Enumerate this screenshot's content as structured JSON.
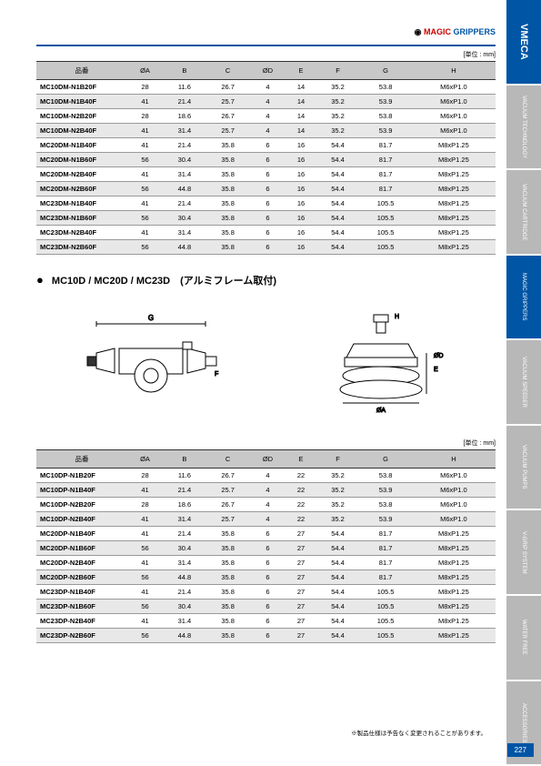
{
  "brand": {
    "magic": "MAGIC",
    "grippers": "GRIPPERS"
  },
  "unit": "[単位 : mm]",
  "headers": [
    "品番",
    "ØA",
    "B",
    "C",
    "ØD",
    "E",
    "F",
    "G",
    "H"
  ],
  "table1": [
    {
      "pn": "MC10DM-N1B20F",
      "d": [
        "28",
        "11.6",
        "26.7",
        "4",
        "14",
        "35.2",
        "53.8",
        "M6xP1.0"
      ],
      "alt": false
    },
    {
      "pn": "MC10DM-N1B40F",
      "d": [
        "41",
        "21.4",
        "25.7",
        "4",
        "14",
        "35.2",
        "53.9",
        "M6xP1.0"
      ],
      "alt": true
    },
    {
      "pn": "MC10DM-N2B20F",
      "d": [
        "28",
        "18.6",
        "26.7",
        "4",
        "14",
        "35.2",
        "53.8",
        "M6xP1.0"
      ],
      "alt": false
    },
    {
      "pn": "MC10DM-N2B40F",
      "d": [
        "41",
        "31.4",
        "25.7",
        "4",
        "14",
        "35.2",
        "53.9",
        "M6xP1.0"
      ],
      "alt": true
    },
    {
      "pn": "MC20DM-N1B40F",
      "d": [
        "41",
        "21.4",
        "35.8",
        "6",
        "16",
        "54.4",
        "81.7",
        "M8xP1.25"
      ],
      "alt": false
    },
    {
      "pn": "MC20DM-N1B60F",
      "d": [
        "56",
        "30.4",
        "35.8",
        "6",
        "16",
        "54.4",
        "81.7",
        "M8xP1.25"
      ],
      "alt": true
    },
    {
      "pn": "MC20DM-N2B40F",
      "d": [
        "41",
        "31.4",
        "35.8",
        "6",
        "16",
        "54.4",
        "81.7",
        "M8xP1.25"
      ],
      "alt": false
    },
    {
      "pn": "MC20DM-N2B60F",
      "d": [
        "56",
        "44.8",
        "35.8",
        "6",
        "16",
        "54.4",
        "81.7",
        "M8xP1.25"
      ],
      "alt": true
    },
    {
      "pn": "MC23DM-N1B40F",
      "d": [
        "41",
        "21.4",
        "35.8",
        "6",
        "16",
        "54.4",
        "105.5",
        "M8xP1.25"
      ],
      "alt": false
    },
    {
      "pn": "MC23DM-N1B60F",
      "d": [
        "56",
        "30.4",
        "35.8",
        "6",
        "16",
        "54.4",
        "105.5",
        "M8xP1.25"
      ],
      "alt": true
    },
    {
      "pn": "MC23DM-N2B40F",
      "d": [
        "41",
        "31.4",
        "35.8",
        "6",
        "16",
        "54.4",
        "105.5",
        "M8xP1.25"
      ],
      "alt": false
    },
    {
      "pn": "MC23DM-N2B60F",
      "d": [
        "56",
        "44.8",
        "35.8",
        "6",
        "16",
        "54.4",
        "105.5",
        "M8xP1.25"
      ],
      "alt": true
    }
  ],
  "section_title": "MC10D / MC20D / MC23D　(アルミフレーム取付)",
  "table2": [
    {
      "pn": "MC10DP-N1B20F",
      "d": [
        "28",
        "11.6",
        "26.7",
        "4",
        "22",
        "35.2",
        "53.8",
        "M6xP1.0"
      ],
      "alt": false
    },
    {
      "pn": "MC10DP-N1B40F",
      "d": [
        "41",
        "21.4",
        "25.7",
        "4",
        "22",
        "35.2",
        "53.9",
        "M6xP1.0"
      ],
      "alt": true
    },
    {
      "pn": "MC10DP-N2B20F",
      "d": [
        "28",
        "18.6",
        "26.7",
        "4",
        "22",
        "35.2",
        "53.8",
        "M6xP1.0"
      ],
      "alt": false
    },
    {
      "pn": "MC10DP-N2B40F",
      "d": [
        "41",
        "31.4",
        "25.7",
        "4",
        "22",
        "35.2",
        "53.9",
        "M6xP1.0"
      ],
      "alt": true
    },
    {
      "pn": "MC20DP-N1B40F",
      "d": [
        "41",
        "21.4",
        "35.8",
        "6",
        "27",
        "54.4",
        "81.7",
        "M8xP1.25"
      ],
      "alt": false
    },
    {
      "pn": "MC20DP-N1B60F",
      "d": [
        "56",
        "30.4",
        "35.8",
        "6",
        "27",
        "54.4",
        "81.7",
        "M8xP1.25"
      ],
      "alt": true
    },
    {
      "pn": "MC20DP-N2B40F",
      "d": [
        "41",
        "31.4",
        "35.8",
        "6",
        "27",
        "54.4",
        "81.7",
        "M8xP1.25"
      ],
      "alt": false
    },
    {
      "pn": "MC20DP-N2B60F",
      "d": [
        "56",
        "44.8",
        "35.8",
        "6",
        "27",
        "54.4",
        "81.7",
        "M8xP1.25"
      ],
      "alt": true
    },
    {
      "pn": "MC23DP-N1B40F",
      "d": [
        "41",
        "21.4",
        "35.8",
        "6",
        "27",
        "54.4",
        "105.5",
        "M8xP1.25"
      ],
      "alt": false
    },
    {
      "pn": "MC23DP-N1B60F",
      "d": [
        "56",
        "30.4",
        "35.8",
        "6",
        "27",
        "54.4",
        "105.5",
        "M8xP1.25"
      ],
      "alt": true
    },
    {
      "pn": "MC23DP-N2B40F",
      "d": [
        "41",
        "31.4",
        "35.8",
        "6",
        "27",
        "54.4",
        "105.5",
        "M8xP1.25"
      ],
      "alt": false
    },
    {
      "pn": "MC23DP-N2B60F",
      "d": [
        "56",
        "44.8",
        "35.8",
        "6",
        "27",
        "54.4",
        "105.5",
        "M8xP1.25"
      ],
      "alt": true
    }
  ],
  "sidebar": [
    "VMECA",
    "VACUUM TECHNOLOGY",
    "VACUUM CARTRIDGE",
    "MAGIC GRIPPERS",
    "VACUUM SPEEDER",
    "VACUUM PUMPS",
    "V-GRIP SYSTEM",
    "WATER FREE",
    "ACCESSORIES"
  ],
  "footer": "※製品仕様は予告なく変更されることがあります。",
  "page_num": "227",
  "dim_labels": {
    "G": "G",
    "F": "F",
    "H": "H",
    "OA": "ØA",
    "OD": "ØD",
    "E": "E"
  }
}
